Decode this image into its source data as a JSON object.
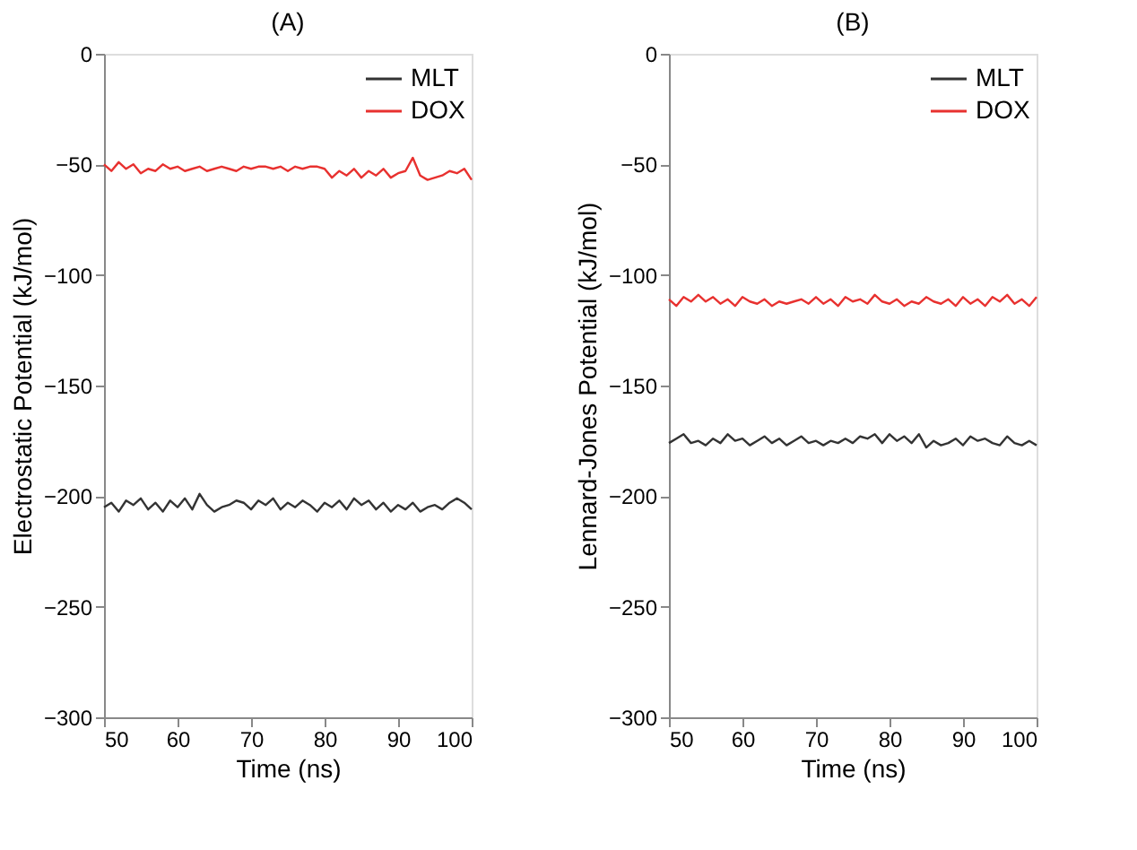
{
  "chart_data": [
    {
      "type": "line",
      "title": "(A)",
      "xlabel": "Time (ns)",
      "ylabel": "Electrostatic Potential (kJ/mol)",
      "xlim": [
        50,
        100
      ],
      "xticks": [
        50,
        60,
        70,
        80,
        90,
        100
      ],
      "ylim": [
        -300,
        0
      ],
      "yticks": [
        -300,
        -250,
        -200,
        -150,
        -100,
        -50,
        0
      ],
      "grid": false,
      "legend": "top right",
      "line_style": "solid",
      "x": [
        50,
        51,
        52,
        53,
        54,
        55,
        56,
        57,
        58,
        59,
        60,
        61,
        62,
        63,
        64,
        65,
        66,
        67,
        68,
        69,
        70,
        71,
        72,
        73,
        74,
        75,
        76,
        77,
        78,
        79,
        80,
        81,
        82,
        83,
        84,
        85,
        86,
        87,
        88,
        89,
        90,
        91,
        92,
        93,
        94,
        95,
        96,
        97,
        98,
        99,
        100
      ],
      "series": [
        {
          "name": "MLT",
          "color": "#333333",
          "values": [
            -205,
            -203,
            -207,
            -202,
            -204,
            -201,
            -206,
            -203,
            -207,
            -202,
            -205,
            -201,
            -206,
            -199,
            -204,
            -207,
            -205,
            -204,
            -202,
            -203,
            -206,
            -202,
            -204,
            -201,
            -206,
            -203,
            -205,
            -202,
            -204,
            -207,
            -203,
            -205,
            -202,
            -206,
            -201,
            -204,
            -202,
            -206,
            -203,
            -207,
            -204,
            -206,
            -203,
            -207,
            -205,
            -204,
            -206,
            -203,
            -201,
            -203,
            -206
          ]
        },
        {
          "name": "DOX",
          "color": "#e8312f",
          "values": [
            -50,
            -53,
            -49,
            -52,
            -50,
            -54,
            -52,
            -53,
            -50,
            -52,
            -51,
            -53,
            -52,
            -51,
            -53,
            -52,
            -51,
            -52,
            -53,
            -51,
            -52,
            -51,
            -51,
            -52,
            -51,
            -53,
            -51,
            -52,
            -51,
            -51,
            -52,
            -56,
            -53,
            -55,
            -52,
            -56,
            -53,
            -55,
            -52,
            -56,
            -54,
            -53,
            -47,
            -55,
            -57,
            -56,
            -55,
            -53,
            -54,
            -52,
            -57
          ]
        }
      ]
    },
    {
      "type": "line",
      "title": "(B)",
      "xlabel": "Time (ns)",
      "ylabel": "Lennard-Jones Potential (kJ/mol)",
      "xlim": [
        50,
        100
      ],
      "xticks": [
        50,
        60,
        70,
        80,
        90,
        100
      ],
      "ylim": [
        -300,
        0
      ],
      "yticks": [
        -300,
        -250,
        -200,
        -150,
        -100,
        -50,
        0
      ],
      "grid": false,
      "legend": "top right",
      "line_style": "solid",
      "x": [
        50,
        51,
        52,
        53,
        54,
        55,
        56,
        57,
        58,
        59,
        60,
        61,
        62,
        63,
        64,
        65,
        66,
        67,
        68,
        69,
        70,
        71,
        72,
        73,
        74,
        75,
        76,
        77,
        78,
        79,
        80,
        81,
        82,
        83,
        84,
        85,
        86,
        87,
        88,
        89,
        90,
        91,
        92,
        93,
        94,
        95,
        96,
        97,
        98,
        99,
        100
      ],
      "series": [
        {
          "name": "MLT",
          "color": "#333333",
          "values": [
            -176,
            -174,
            -172,
            -176,
            -175,
            -177,
            -174,
            -176,
            -172,
            -175,
            -174,
            -177,
            -175,
            -173,
            -176,
            -174,
            -177,
            -175,
            -173,
            -176,
            -175,
            -177,
            -175,
            -176,
            -174,
            -176,
            -173,
            -174,
            -172,
            -176,
            -172,
            -175,
            -173,
            -176,
            -172,
            -178,
            -175,
            -177,
            -176,
            -174,
            -177,
            -173,
            -175,
            -174,
            -176,
            -177,
            -173,
            -176,
            -177,
            -175,
            -177
          ]
        },
        {
          "name": "DOX",
          "color": "#e8312f",
          "values": [
            -111,
            -114,
            -110,
            -112,
            -109,
            -112,
            -110,
            -113,
            -111,
            -114,
            -110,
            -112,
            -113,
            -111,
            -114,
            -112,
            -113,
            -112,
            -111,
            -113,
            -110,
            -113,
            -111,
            -114,
            -110,
            -112,
            -111,
            -113,
            -109,
            -112,
            -113,
            -111,
            -114,
            -112,
            -113,
            -110,
            -112,
            -113,
            -111,
            -114,
            -110,
            -113,
            -111,
            -114,
            -110,
            -112,
            -109,
            -113,
            -111,
            -114,
            -110
          ]
        }
      ]
    }
  ]
}
